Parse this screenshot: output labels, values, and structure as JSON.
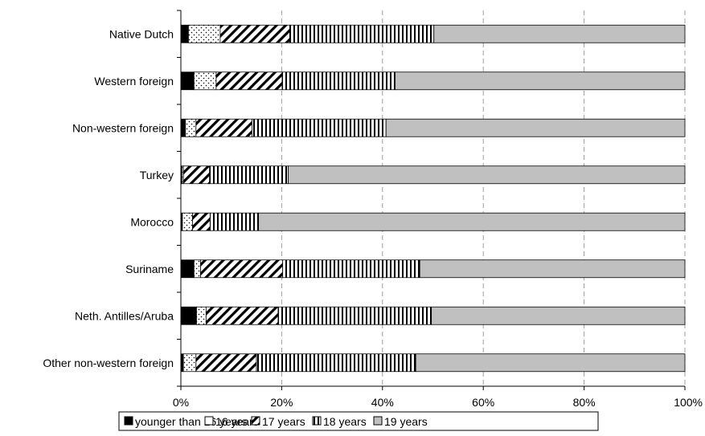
{
  "chart_data": {
    "type": "bar",
    "orientation": "horizontal",
    "stacked": true,
    "percent_stacked": true,
    "categories": [
      "Native Dutch",
      "Western foreign",
      "Non-western foreign",
      "Turkey",
      "Morocco",
      "Suriname",
      "Neth. Antilles/Aruba",
      "Other non-western foreign"
    ],
    "series": [
      {
        "name": "younger than 16 years",
        "pattern": "solid-black",
        "values": [
          1.5,
          2.6,
          0.9,
          0.2,
          0.3,
          2.6,
          3.1,
          0.5
        ]
      },
      {
        "name": "16 years",
        "pattern": "dots",
        "values": [
          6.3,
          4.4,
          2.1,
          0.3,
          2.0,
          1.3,
          1.9,
          2.5
        ]
      },
      {
        "name": "17 years",
        "pattern": "diagonal-stripes",
        "values": [
          13.8,
          13.1,
          11.1,
          5.2,
          3.5,
          16.3,
          14.3,
          12.0
        ]
      },
      {
        "name": "18 years",
        "pattern": "vertical-stripes",
        "values": [
          28.6,
          22.4,
          26.6,
          15.6,
          9.6,
          27.2,
          30.4,
          31.6
        ]
      },
      {
        "name": "19 years",
        "pattern": "solid-grey",
        "values": [
          49.8,
          57.5,
          59.3,
          78.7,
          84.6,
          52.6,
          50.3,
          53.4
        ]
      }
    ],
    "xlim": [
      0,
      100
    ],
    "x_ticks": [
      "0%",
      "20%",
      "40%",
      "60%",
      "80%",
      "100%"
    ],
    "grid": "vertical dashed",
    "legend_position": "bottom",
    "colors": {
      "grey": "#c0c0c0",
      "black": "#000000",
      "grid": "#a0a0a0"
    }
  }
}
